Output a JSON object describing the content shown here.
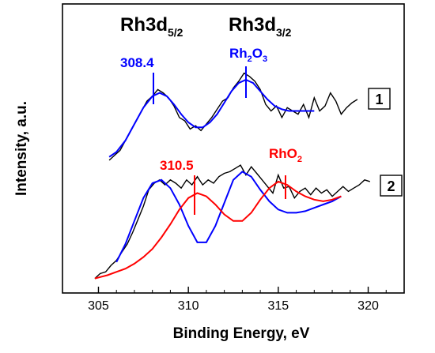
{
  "chart_data": {
    "type": "line",
    "xlabel": "Binding Energy, eV",
    "ylabel": "Intensity, a.u.",
    "xlim": [
      303,
      322
    ],
    "xticks": [
      305,
      310,
      315,
      320
    ],
    "grid": false,
    "colors": {
      "raw": "#000000",
      "fit_blue": "#0000ff",
      "fit_red": "#ff0000"
    },
    "annotations": {
      "rh3d52_main": "Rh3d",
      "rh3d52_sub": "5/2",
      "rh3d32_main": "Rh3d",
      "rh3d32_sub": "3/2",
      "peak1_label": "308.4",
      "rh2o3_a": "Rh",
      "rh2o3_b": "2",
      "rh2o3_c": "O",
      "rh2o3_d": "3",
      "peak2_label": "310.5",
      "rho2_a": "RhO",
      "rho2_b": "2",
      "curve1_label": "1",
      "curve2_label": "2"
    },
    "series": [
      {
        "id": "raw1",
        "color": "#000000",
        "x": [
          305.6,
          305.9,
          306.2,
          306.5,
          306.8,
          307.1,
          307.4,
          307.7,
          308.0,
          308.3,
          308.6,
          308.9,
          309.2,
          309.5,
          309.8,
          310.1,
          310.4,
          310.7,
          311.0,
          311.3,
          311.6,
          311.9,
          312.2,
          312.5,
          312.8,
          313.1,
          313.4,
          313.7,
          314.0,
          314.3,
          314.6,
          314.9,
          315.2,
          315.5,
          315.8,
          316.1,
          316.4,
          316.7,
          317.0,
          317.3,
          317.6,
          317.9,
          318.2,
          318.5,
          318.8,
          319.1,
          319.4
        ],
        "y": [
          0.14,
          0.17,
          0.2,
          0.26,
          0.32,
          0.38,
          0.44,
          0.5,
          0.53,
          0.57,
          0.55,
          0.52,
          0.47,
          0.4,
          0.38,
          0.33,
          0.35,
          0.32,
          0.36,
          0.4,
          0.45,
          0.5,
          0.52,
          0.58,
          0.62,
          0.67,
          0.65,
          0.62,
          0.57,
          0.48,
          0.44,
          0.47,
          0.4,
          0.46,
          0.44,
          0.42,
          0.48,
          0.4,
          0.52,
          0.44,
          0.47,
          0.55,
          0.5,
          0.42,
          0.46,
          0.49,
          0.51
        ]
      },
      {
        "id": "fit1_blue",
        "color": "#0000ff",
        "x": [
          305.6,
          306.0,
          306.5,
          307.0,
          307.5,
          308.0,
          308.4,
          308.8,
          309.2,
          309.6,
          310.0,
          310.4,
          310.8,
          311.2,
          311.6,
          312.0,
          312.4,
          312.8,
          313.2,
          313.6,
          314.0,
          314.4,
          314.8,
          315.2,
          315.6,
          316.0,
          316.5,
          317.0
        ],
        "y": [
          0.16,
          0.19,
          0.26,
          0.36,
          0.46,
          0.53,
          0.55,
          0.53,
          0.48,
          0.42,
          0.37,
          0.34,
          0.34,
          0.37,
          0.42,
          0.49,
          0.56,
          0.61,
          0.63,
          0.61,
          0.56,
          0.51,
          0.47,
          0.45,
          0.44,
          0.44,
          0.44,
          0.44
        ]
      },
      {
        "id": "raw2",
        "color": "#000000",
        "x": [
          304.8,
          305.1,
          305.4,
          305.7,
          306.0,
          306.3,
          306.6,
          306.9,
          307.2,
          307.5,
          307.8,
          308.1,
          308.4,
          308.7,
          309.0,
          309.3,
          309.6,
          309.9,
          310.2,
          310.5,
          310.8,
          311.1,
          311.4,
          311.7,
          312.0,
          312.3,
          312.6,
          312.9,
          313.2,
          313.5,
          313.8,
          314.1,
          314.4,
          314.7,
          315.0,
          315.3,
          315.6,
          315.9,
          316.2,
          316.5,
          316.8,
          317.1,
          317.4,
          317.7,
          318.0,
          318.3,
          318.6,
          318.9,
          319.2,
          319.5,
          319.8,
          320.1
        ],
        "y": [
          -0.58,
          -0.55,
          -0.54,
          -0.5,
          -0.47,
          -0.42,
          -0.37,
          -0.3,
          -0.22,
          -0.14,
          -0.04,
          0.0,
          0.02,
          -0.01,
          0.02,
          0.0,
          -0.03,
          0.02,
          -0.01,
          0.04,
          -0.01,
          0.02,
          0.0,
          0.04,
          0.06,
          0.07,
          0.09,
          0.11,
          0.05,
          0.1,
          0.06,
          0.02,
          -0.02,
          -0.06,
          0.05,
          -0.03,
          -0.02,
          -0.09,
          -0.05,
          -0.03,
          -0.07,
          -0.03,
          -0.06,
          -0.04,
          -0.08,
          -0.05,
          -0.02,
          -0.05,
          -0.03,
          -0.01,
          0.02,
          0.01
        ]
      },
      {
        "id": "fit2_blue",
        "color": "#0000ff",
        "x": [
          306.0,
          306.5,
          307.0,
          307.5,
          308.0,
          308.5,
          309.0,
          309.5,
          310.0,
          310.5,
          311.0,
          311.5,
          312.0,
          312.5,
          313.0,
          313.5,
          314.0,
          314.5,
          315.0,
          315.5,
          316.0,
          316.5,
          317.0,
          317.5,
          318.0,
          318.5
        ],
        "y": [
          -0.48,
          -0.37,
          -0.23,
          -0.09,
          0.0,
          0.02,
          -0.03,
          -0.13,
          -0.26,
          -0.36,
          -0.36,
          -0.26,
          -0.12,
          0.02,
          0.07,
          0.04,
          -0.04,
          -0.11,
          -0.16,
          -0.18,
          -0.18,
          -0.17,
          -0.15,
          -0.13,
          -0.11,
          -0.08
        ]
      },
      {
        "id": "fit2_red",
        "color": "#ff0000",
        "x": [
          304.8,
          305.5,
          306.0,
          306.5,
          307.0,
          307.5,
          308.0,
          308.5,
          309.0,
          309.5,
          310.0,
          310.5,
          311.0,
          311.5,
          312.0,
          312.5,
          313.0,
          313.5,
          314.0,
          314.5,
          315.0,
          315.5,
          316.0,
          316.5,
          317.0,
          317.5,
          318.0,
          318.5
        ],
        "y": [
          -0.58,
          -0.56,
          -0.54,
          -0.52,
          -0.49,
          -0.45,
          -0.4,
          -0.33,
          -0.25,
          -0.16,
          -0.09,
          -0.06,
          -0.08,
          -0.13,
          -0.19,
          -0.23,
          -0.23,
          -0.18,
          -0.1,
          -0.03,
          0.01,
          -0.01,
          -0.05,
          -0.08,
          -0.1,
          -0.11,
          -0.1,
          -0.08
        ]
      }
    ]
  }
}
